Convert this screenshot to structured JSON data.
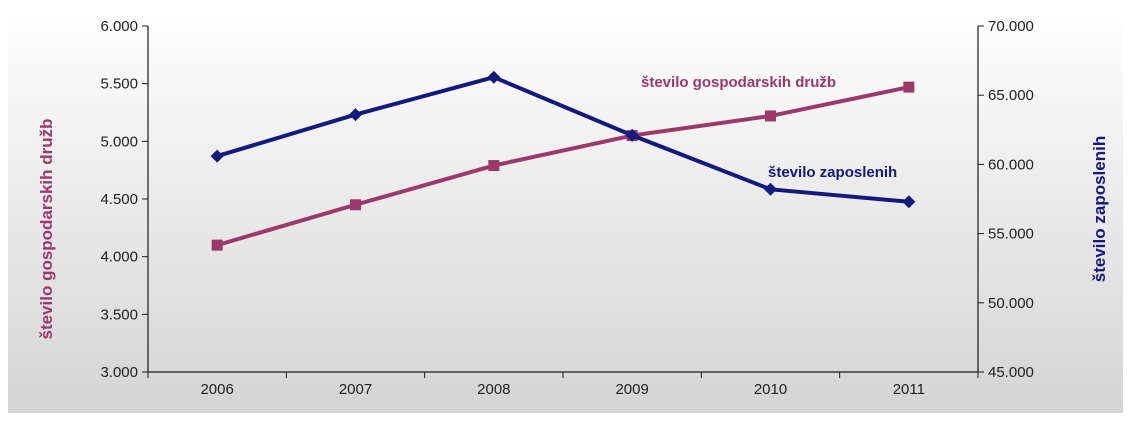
{
  "colors": {
    "background_top": "#ffffff",
    "background_bottom": "#d4d4d4",
    "left_series": "#9b3a6a",
    "right_series": "#14197d",
    "axis": "#1a1a1a"
  },
  "chart_data": {
    "type": "line",
    "categories": [
      "2006",
      "2007",
      "2008",
      "2009",
      "2010",
      "2011"
    ],
    "y_left": {
      "label": "število gospodarskih družb",
      "range": [
        3000,
        6000
      ],
      "ticks": [
        "3.000",
        "3.500",
        "4.000",
        "4.500",
        "5.000",
        "5.500",
        "6.000"
      ]
    },
    "y_right": {
      "label": "število zaposlenih",
      "range": [
        45000,
        70000
      ],
      "ticks": [
        "45.000",
        "50.000",
        "55.000",
        "60.000",
        "65.000",
        "70.000"
      ]
    },
    "grid": false,
    "series": [
      {
        "name": "število gospodarskih družb",
        "axis": "left",
        "marker": "square",
        "values": [
          4100,
          4450,
          4790,
          5050,
          5220,
          5470
        ]
      },
      {
        "name": "število zaposlenih",
        "axis": "right",
        "marker": "diamond",
        "values": [
          60600,
          63600,
          66300,
          62100,
          58200,
          57300
        ]
      }
    ]
  }
}
